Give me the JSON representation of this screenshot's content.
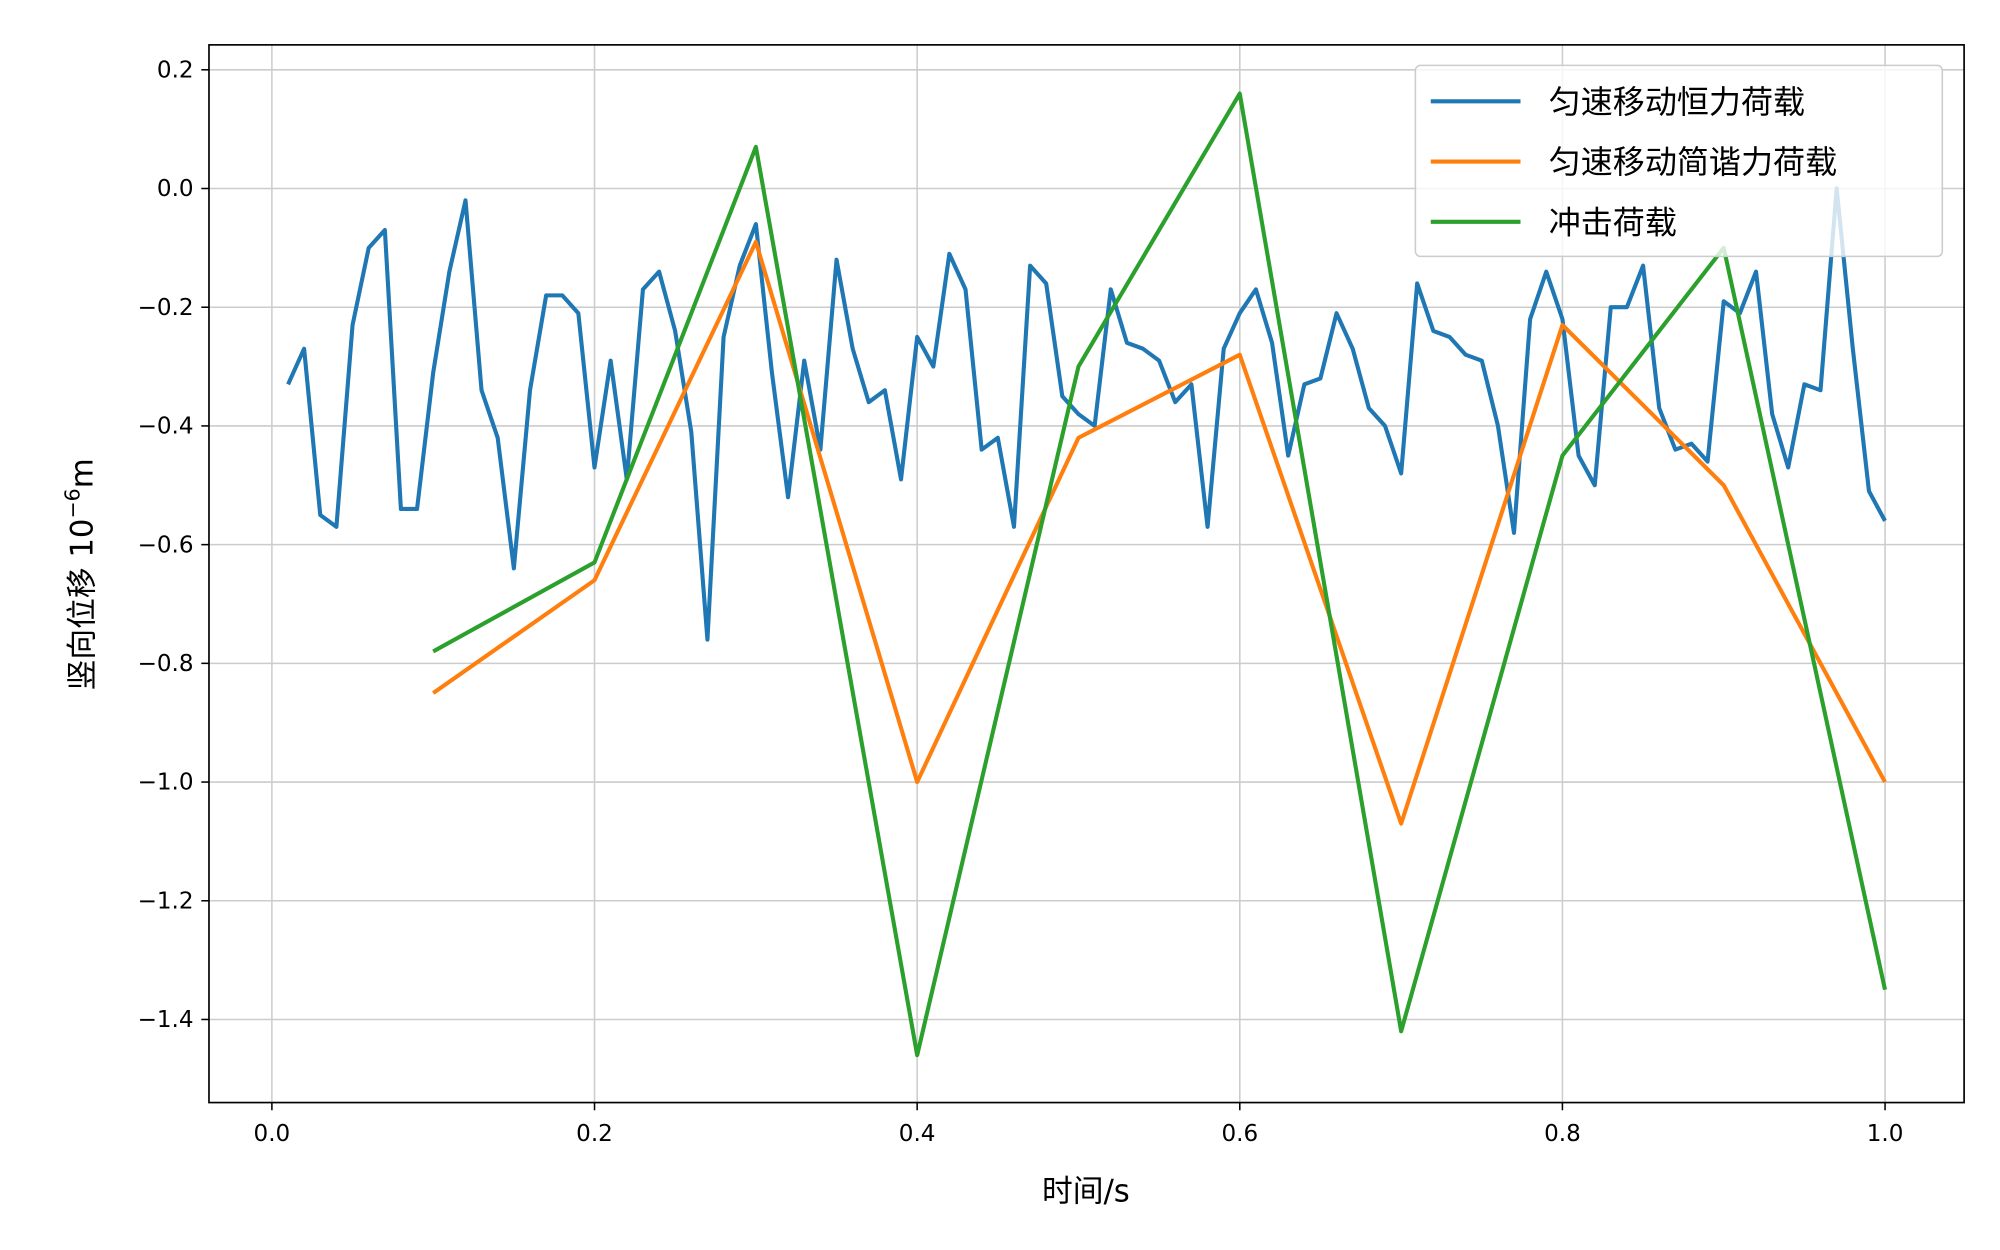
{
  "chart_data": {
    "type": "line",
    "title": "",
    "xlabel": "时间/s",
    "ylabel": "竖向位移 10",
    "ylabel_exponent": "−6",
    "ylabel_unit": "m",
    "xlim": [
      -0.039,
      1.049
    ],
    "ylim": [
      -1.54,
      0.242
    ],
    "xticks": [
      0.0,
      0.2,
      0.4,
      0.6,
      0.8,
      1.0
    ],
    "xtick_labels": [
      "0.0",
      "0.2",
      "0.4",
      "0.6",
      "0.8",
      "1.0"
    ],
    "yticks": [
      0.2,
      0.0,
      -0.2,
      -0.4,
      -0.6,
      -0.8,
      -1.0,
      -1.2,
      -1.4
    ],
    "ytick_labels": [
      "0.2",
      "0.0",
      "−0.2",
      "−0.4",
      "−0.6",
      "−0.8",
      "−1.0",
      "−1.2",
      "−1.4"
    ],
    "grid": true,
    "legend_position": "top-right",
    "series": [
      {
        "name": "匀速移动恒力荷载",
        "color": "#1f77b4",
        "x": [
          0.01,
          0.02,
          0.03,
          0.04,
          0.05,
          0.06,
          0.07,
          0.08,
          0.09,
          0.1,
          0.11,
          0.12,
          0.13,
          0.14,
          0.15,
          0.16,
          0.17,
          0.18,
          0.19,
          0.2,
          0.21,
          0.22,
          0.23,
          0.24,
          0.25,
          0.26,
          0.27,
          0.28,
          0.29,
          0.3,
          0.31,
          0.32,
          0.33,
          0.34,
          0.35,
          0.36,
          0.37,
          0.38,
          0.39,
          0.4,
          0.41,
          0.42,
          0.43,
          0.44,
          0.45,
          0.46,
          0.47,
          0.48,
          0.49,
          0.5,
          0.51,
          0.52,
          0.53,
          0.54,
          0.55,
          0.56,
          0.57,
          0.58,
          0.59,
          0.6,
          0.61,
          0.62,
          0.63,
          0.64,
          0.65,
          0.66,
          0.67,
          0.68,
          0.69,
          0.7,
          0.71,
          0.72,
          0.73,
          0.74,
          0.75,
          0.76,
          0.77,
          0.78,
          0.79,
          0.8,
          0.81,
          0.82,
          0.83,
          0.84,
          0.85,
          0.86,
          0.87,
          0.88,
          0.89,
          0.9,
          0.91,
          0.92,
          0.93,
          0.94,
          0.95,
          0.96,
          0.97,
          0.98,
          0.99,
          1.0
        ],
        "y": [
          -0.33,
          -0.27,
          -0.55,
          -0.57,
          -0.23,
          -0.1,
          -0.07,
          -0.54,
          -0.54,
          -0.31,
          -0.14,
          -0.02,
          -0.34,
          -0.42,
          -0.64,
          -0.34,
          -0.18,
          -0.18,
          -0.21,
          -0.47,
          -0.29,
          -0.49,
          -0.17,
          -0.14,
          -0.24,
          -0.41,
          -0.76,
          -0.25,
          -0.13,
          -0.06,
          -0.31,
          -0.52,
          -0.29,
          -0.44,
          -0.12,
          -0.27,
          -0.36,
          -0.34,
          -0.49,
          -0.25,
          -0.3,
          -0.11,
          -0.17,
          -0.44,
          -0.42,
          -0.57,
          -0.13,
          -0.16,
          -0.35,
          -0.38,
          -0.4,
          -0.17,
          -0.26,
          -0.27,
          -0.29,
          -0.36,
          -0.33,
          -0.57,
          -0.27,
          -0.21,
          -0.17,
          -0.26,
          -0.45,
          -0.33,
          -0.32,
          -0.21,
          -0.27,
          -0.37,
          -0.4,
          -0.48,
          -0.16,
          -0.24,
          -0.25,
          -0.28,
          -0.29,
          -0.4,
          -0.58,
          -0.22,
          -0.14,
          -0.22,
          -0.45,
          -0.5,
          -0.2,
          -0.2,
          -0.13,
          -0.37,
          -0.44,
          -0.43,
          -0.46,
          -0.19,
          -0.21,
          -0.14,
          -0.38,
          -0.47,
          -0.33,
          -0.34,
          0.0,
          -0.27,
          -0.51,
          -0.56
        ]
      },
      {
        "name": "匀速移动简谐力荷载",
        "color": "#ff7f0e",
        "x": [
          0.1,
          0.2,
          0.3,
          0.4,
          0.5,
          0.6,
          0.7,
          0.8,
          0.9,
          1.0
        ],
        "y": [
          -0.85,
          -0.66,
          -0.09,
          -1.0,
          -0.42,
          -0.28,
          -1.07,
          -0.23,
          -0.5,
          -1.0
        ]
      },
      {
        "name": "冲击荷载",
        "color": "#2ca02c",
        "x": [
          0.1,
          0.2,
          0.3,
          0.4,
          0.5,
          0.6,
          0.7,
          0.8,
          0.9,
          1.0
        ],
        "y": [
          -0.78,
          -0.63,
          0.07,
          -1.46,
          -0.3,
          0.16,
          -1.42,
          -0.45,
          -0.1,
          -1.35
        ]
      }
    ]
  }
}
